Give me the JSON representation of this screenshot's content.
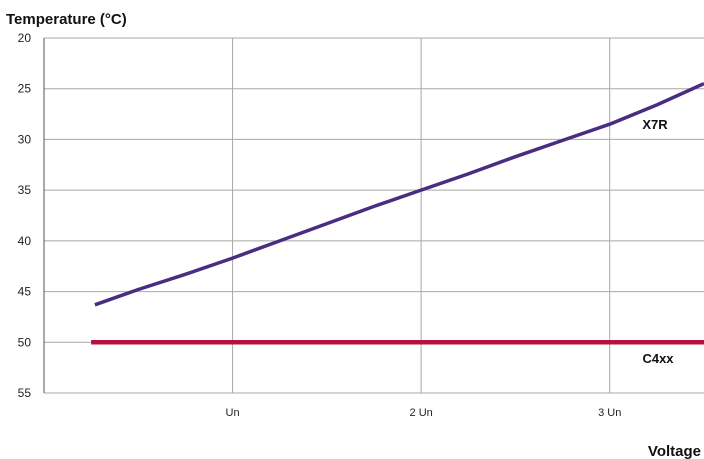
{
  "chart_data": {
    "type": "line",
    "title": "",
    "ylabel": "Temperature (°C)",
    "xlabel": "Voltage",
    "ylim": [
      20,
      55
    ],
    "y_inverted": true,
    "yticks": [
      20,
      25,
      30,
      35,
      40,
      45,
      50,
      55
    ],
    "xlim": [
      0,
      3.5
    ],
    "x_ticks": [
      {
        "value": 1,
        "label": "Un"
      },
      {
        "value": 2,
        "label": "2 Un"
      },
      {
        "value": 3,
        "label": "3 Un"
      }
    ],
    "grid": true,
    "series": [
      {
        "name": "X7R",
        "color": "#4a2d82",
        "x": [
          0.27,
          0.5,
          0.75,
          1.0,
          1.25,
          1.5,
          1.75,
          2.0,
          2.25,
          2.5,
          2.75,
          3.0,
          3.25,
          3.5
        ],
        "y": [
          46.3,
          44.8,
          43.3,
          41.7,
          40.0,
          38.3,
          36.6,
          35.0,
          33.4,
          31.7,
          30.1,
          28.5,
          26.6,
          24.5
        ]
      },
      {
        "name": "C4xx",
        "color": "#b5103f",
        "x": [
          0.25,
          3.5
        ],
        "y": [
          50,
          50
        ]
      }
    ]
  }
}
